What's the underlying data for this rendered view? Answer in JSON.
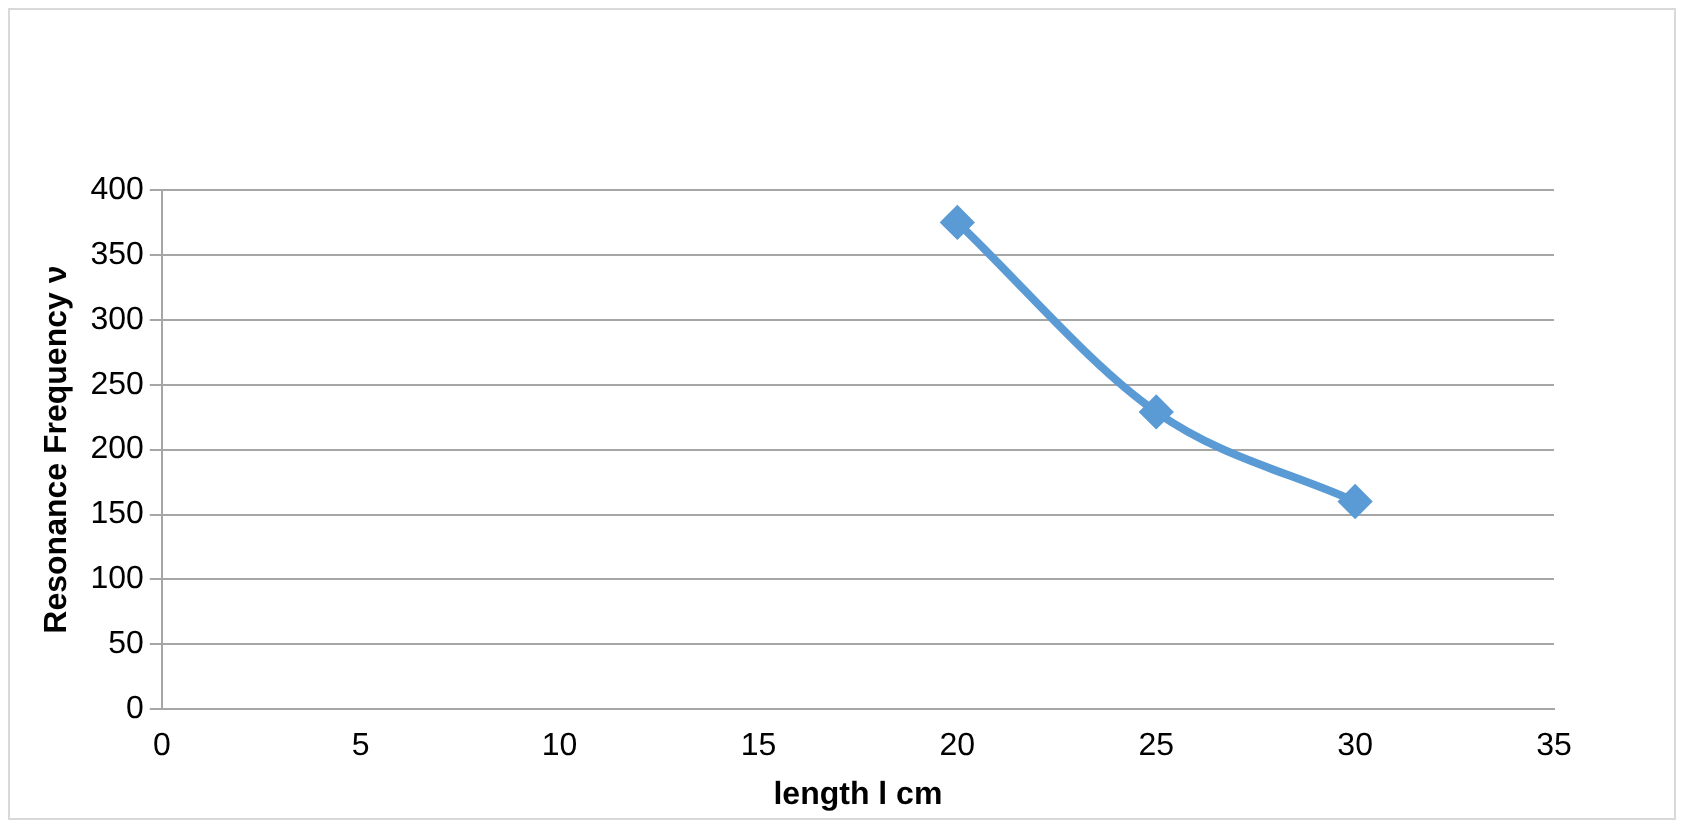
{
  "chart_data": {
    "type": "line",
    "xlabel": "length l cm",
    "ylabel": "Resonance Frequency ν",
    "x": [
      20,
      25,
      30
    ],
    "series": [
      {
        "color": "#5b9bd5",
        "values": [
          375,
          229,
          160
        ]
      }
    ],
    "xlim": [
      0,
      35
    ],
    "xticks": [
      0,
      5,
      10,
      15,
      20,
      25,
      30,
      35
    ],
    "ylim": [
      0,
      400
    ],
    "yticks": [
      0,
      50,
      100,
      150,
      200,
      250,
      300,
      350,
      400
    ],
    "grid": "y",
    "legend": false,
    "marker": "diamond",
    "line_style": "solid"
  }
}
